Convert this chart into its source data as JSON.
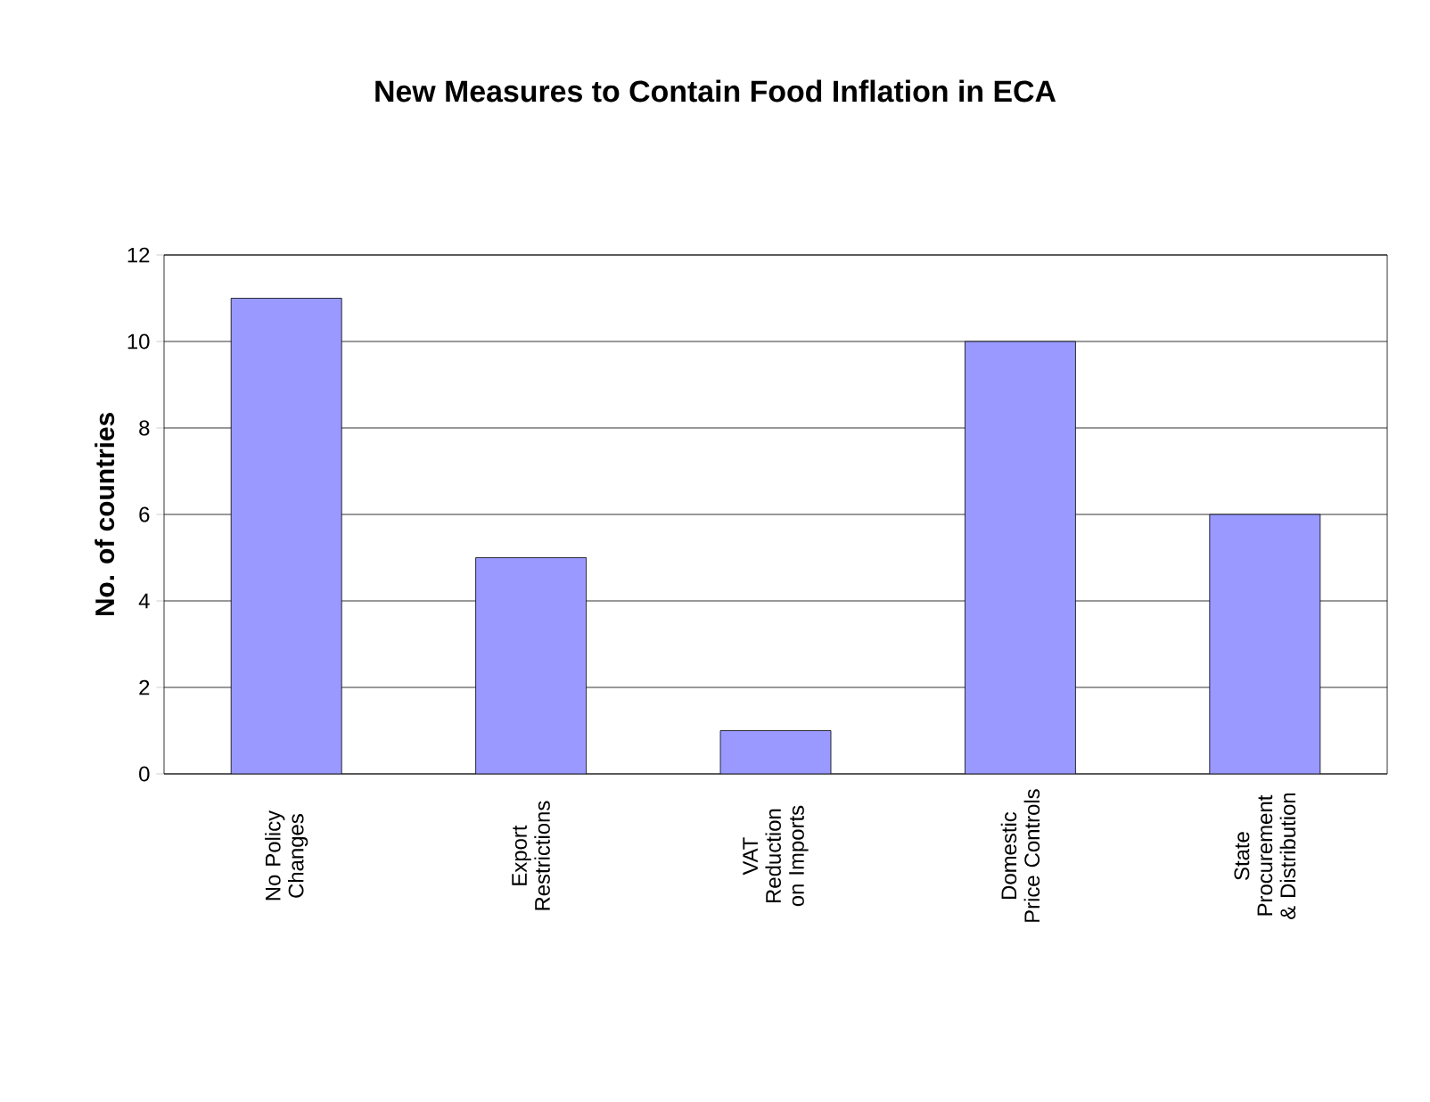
{
  "chart_data": {
    "type": "bar",
    "title": "New Measures to Contain Food Inflation in ECA",
    "ylabel": "No. of countries",
    "categories": [
      "No Policy Changes",
      "Export Restrictions",
      "VAT Reduction on Imports",
      "Domestic Price Controls",
      "State Procurement & Distribution"
    ],
    "values": [
      11,
      5,
      1,
      10,
      6
    ],
    "color": "#9999ff",
    "ylim": [
      0,
      12
    ],
    "yticks": [
      0,
      2,
      4,
      6,
      8,
      10,
      12
    ],
    "grid": "y"
  }
}
